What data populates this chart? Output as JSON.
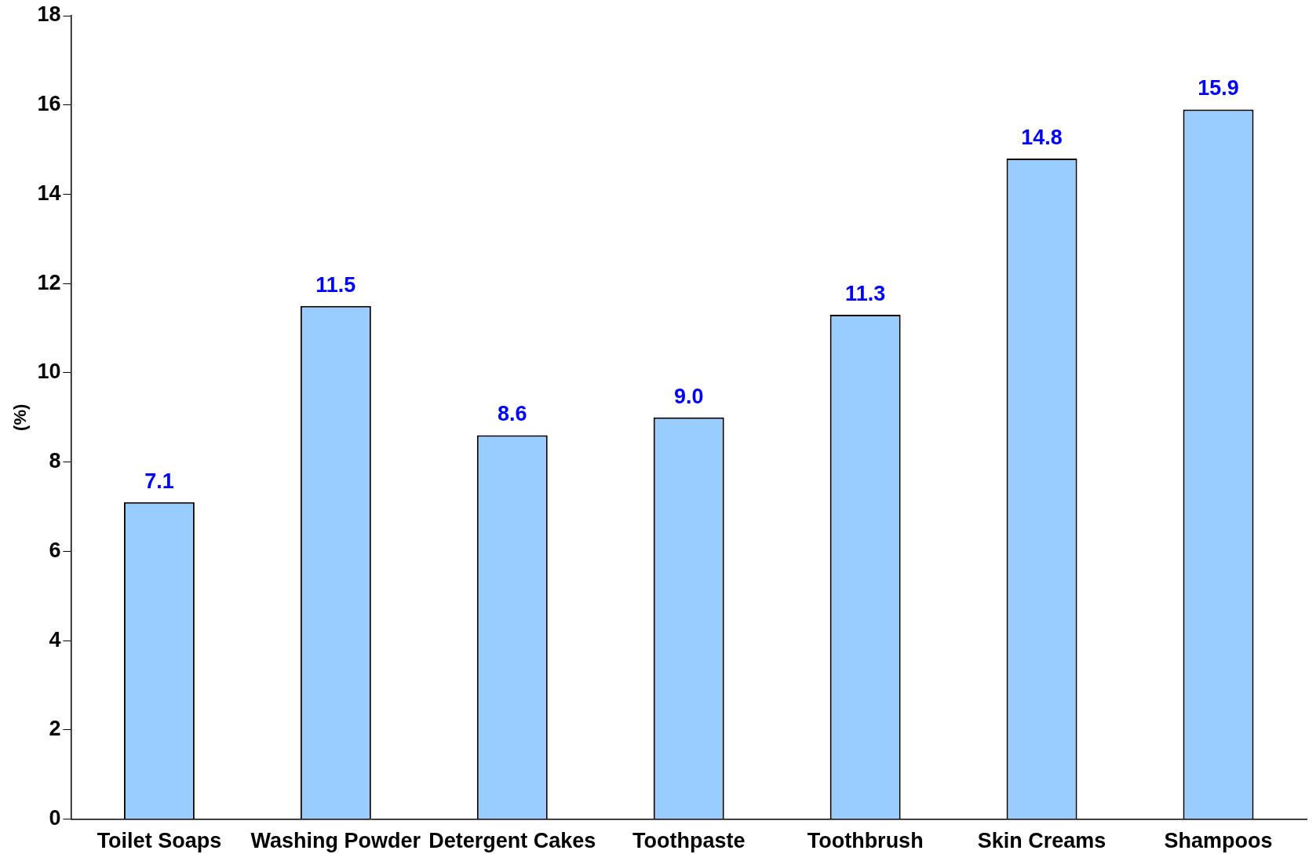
{
  "chart_data": {
    "type": "bar",
    "ylabel": "(%)",
    "categories": [
      "Toilet Soaps",
      "Washing Powder",
      "Detergent Cakes",
      "Toothpaste",
      "Toothbrush",
      "Skin Creams",
      "Shampoos"
    ],
    "values": [
      7.1,
      11.5,
      8.6,
      9.0,
      11.3,
      14.8,
      15.9
    ],
    "value_labels": [
      "7.1",
      "11.5",
      "8.6",
      "9.0",
      "11.3",
      "14.8",
      "15.9"
    ],
    "color": "#99ccff",
    "ylim": [
      0,
      18
    ],
    "yticks": [
      0,
      2,
      4,
      6,
      8,
      10,
      12,
      14,
      16,
      18
    ],
    "grid": false,
    "legend": false
  }
}
